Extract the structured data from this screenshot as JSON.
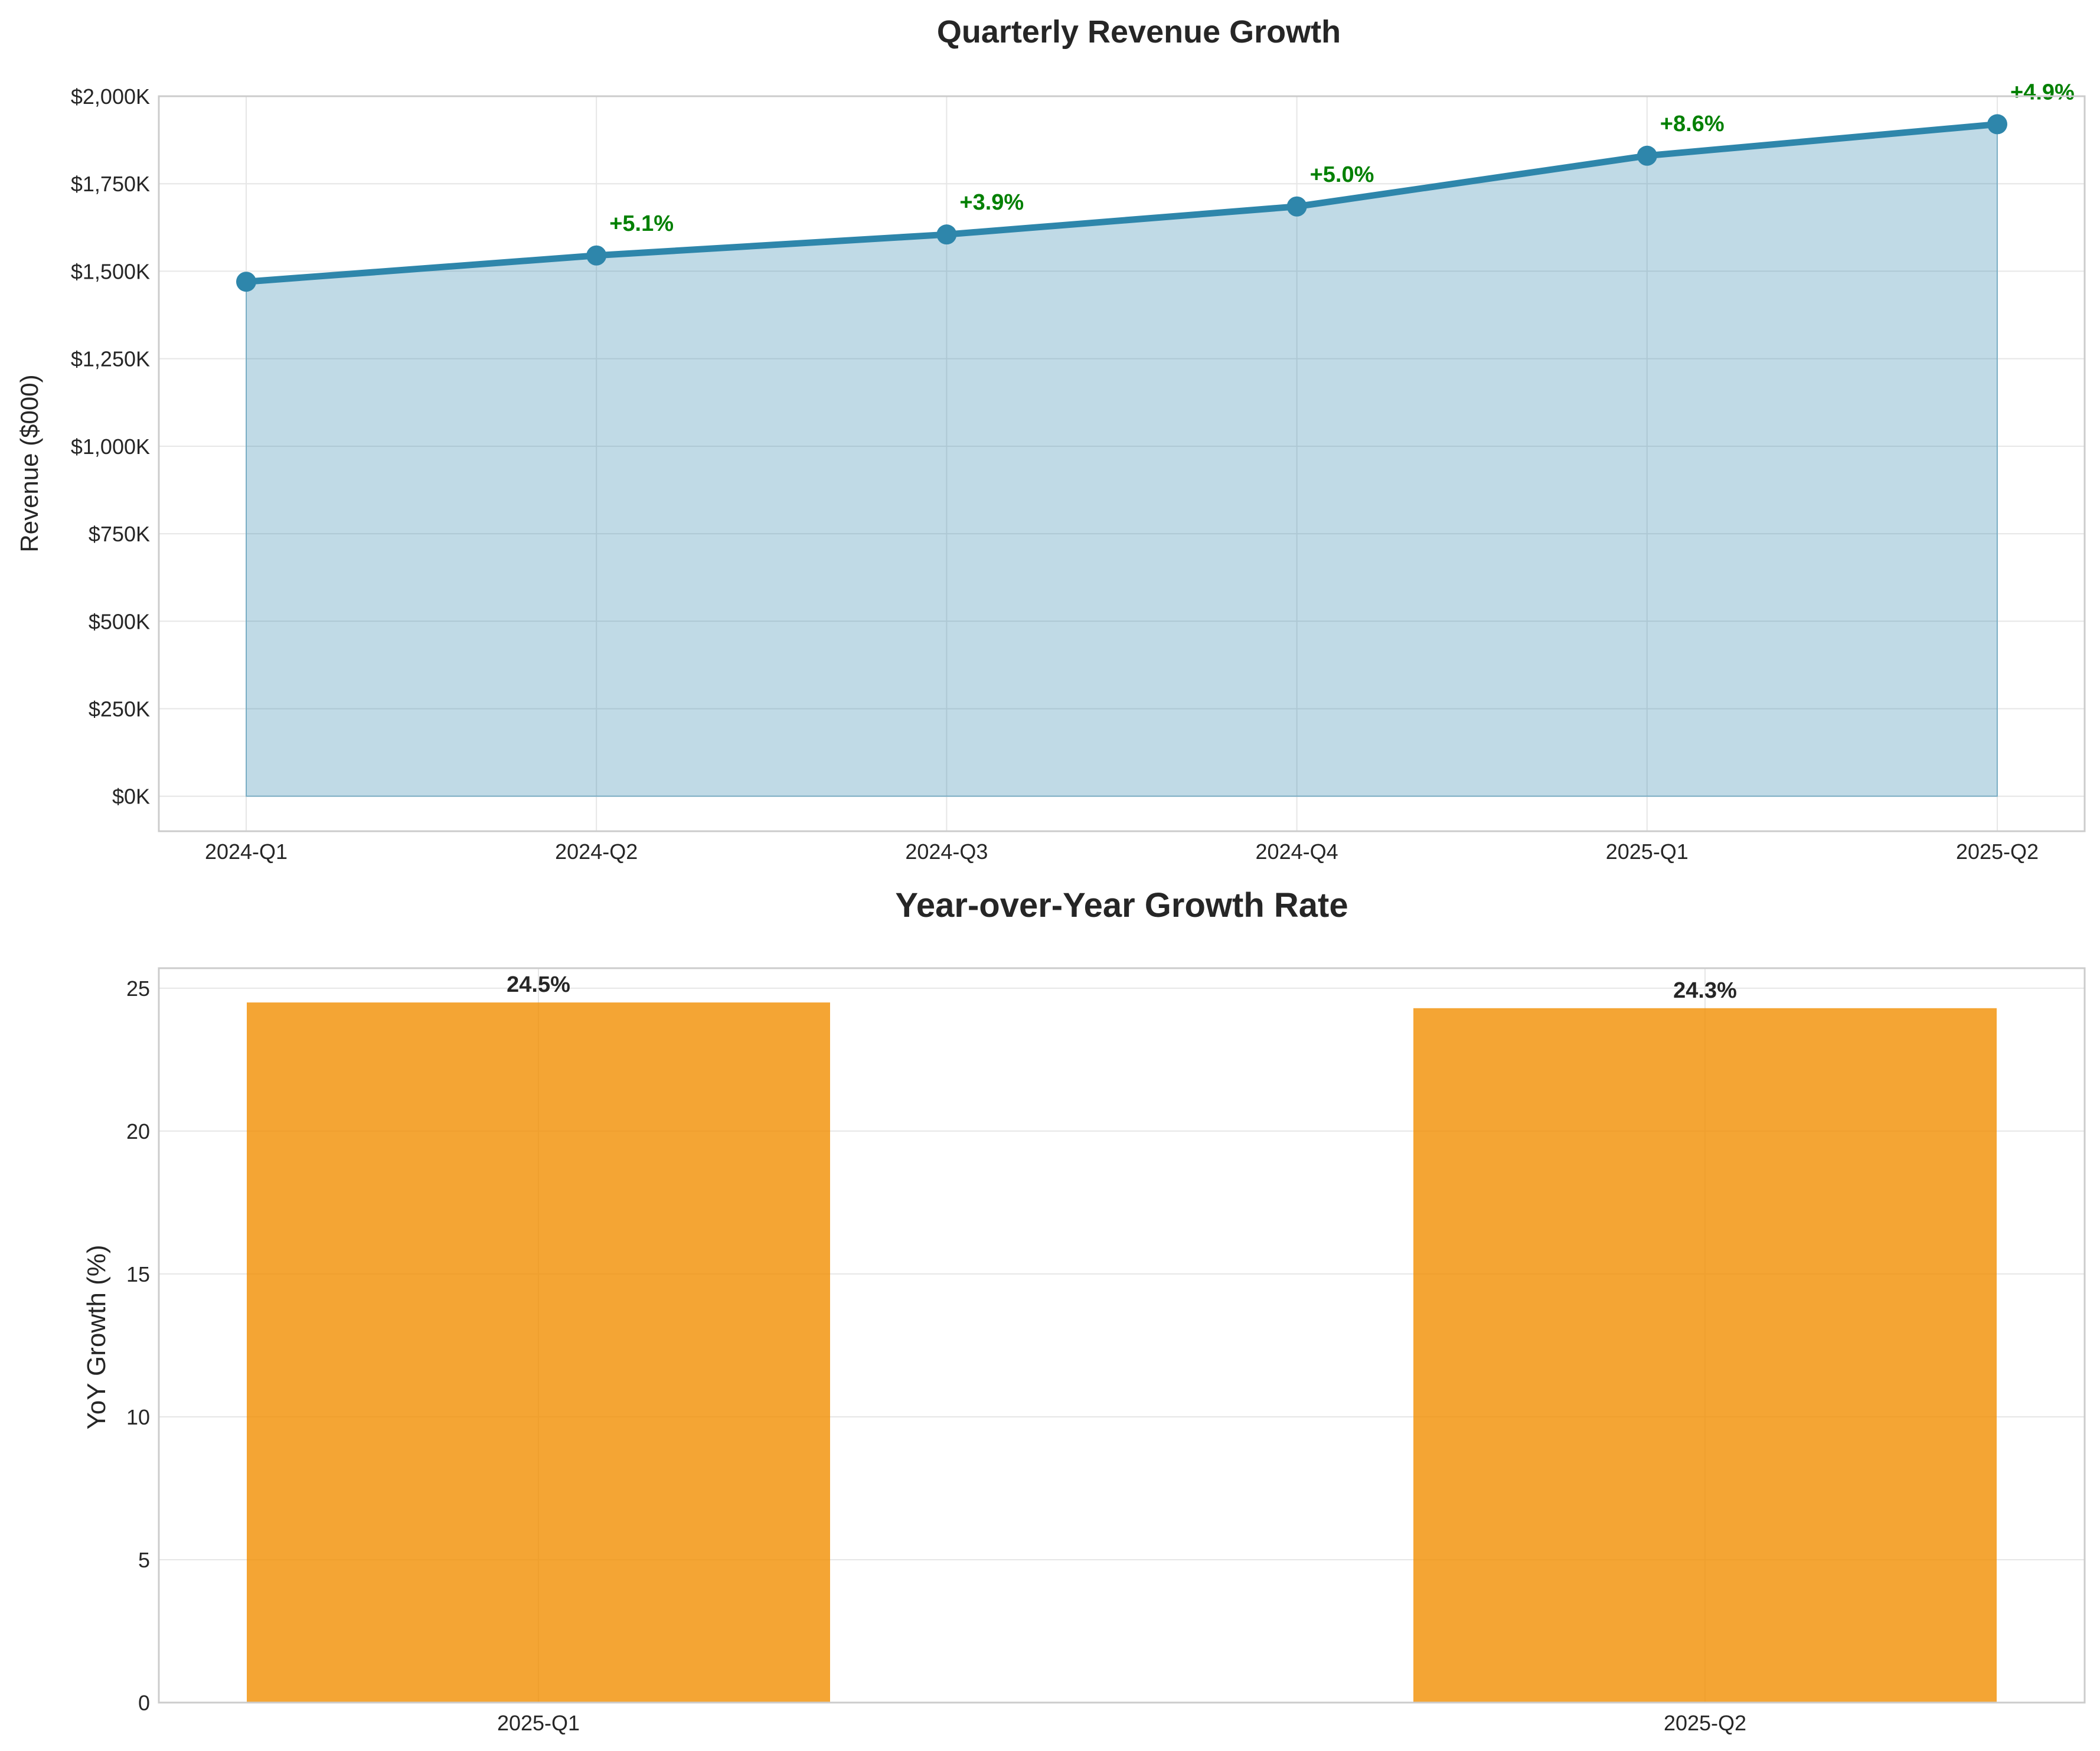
{
  "chart_data": [
    {
      "type": "area",
      "title": "Quarterly Revenue Growth",
      "xlabel": "",
      "ylabel": "Revenue ($000)",
      "categories": [
        "2024-Q1",
        "2024-Q2",
        "2024-Q3",
        "2024-Q4",
        "2025-Q1",
        "2025-Q2"
      ],
      "values": [
        1470,
        1545,
        1605,
        1685,
        1830,
        1920
      ],
      "change_labels": [
        "",
        "+5.1%",
        "+3.9%",
        "+5.0%",
        "+8.6%",
        "+4.9%"
      ],
      "ylim": [
        -100,
        2000
      ],
      "yticks": [
        0,
        250,
        500,
        750,
        1000,
        1250,
        1500,
        1750,
        2000
      ],
      "ytick_labels": [
        "$0K",
        "$250K",
        "$500K",
        "$750K",
        "$1,000K",
        "$1,250K",
        "$1,500K",
        "$1,750K",
        "$2,000K"
      ],
      "grid": true,
      "colors": {
        "line": "#2e86ab",
        "fill": "#2e86ab",
        "label": "#008000"
      }
    },
    {
      "type": "bar",
      "title": "Year-over-Year Growth Rate",
      "xlabel": "",
      "ylabel": "YoY Growth (%)",
      "categories": [
        "2025-Q1",
        "2025-Q2"
      ],
      "values": [
        24.5,
        24.3
      ],
      "value_labels": [
        "24.5%",
        "24.3%"
      ],
      "ylim": [
        0,
        25.7
      ],
      "yticks": [
        0,
        5,
        10,
        15,
        20,
        25
      ],
      "ytick_labels": [
        "0",
        "5",
        "10",
        "15",
        "20",
        "25"
      ],
      "grid": true,
      "colors": {
        "bar": "#f18f01"
      }
    }
  ]
}
